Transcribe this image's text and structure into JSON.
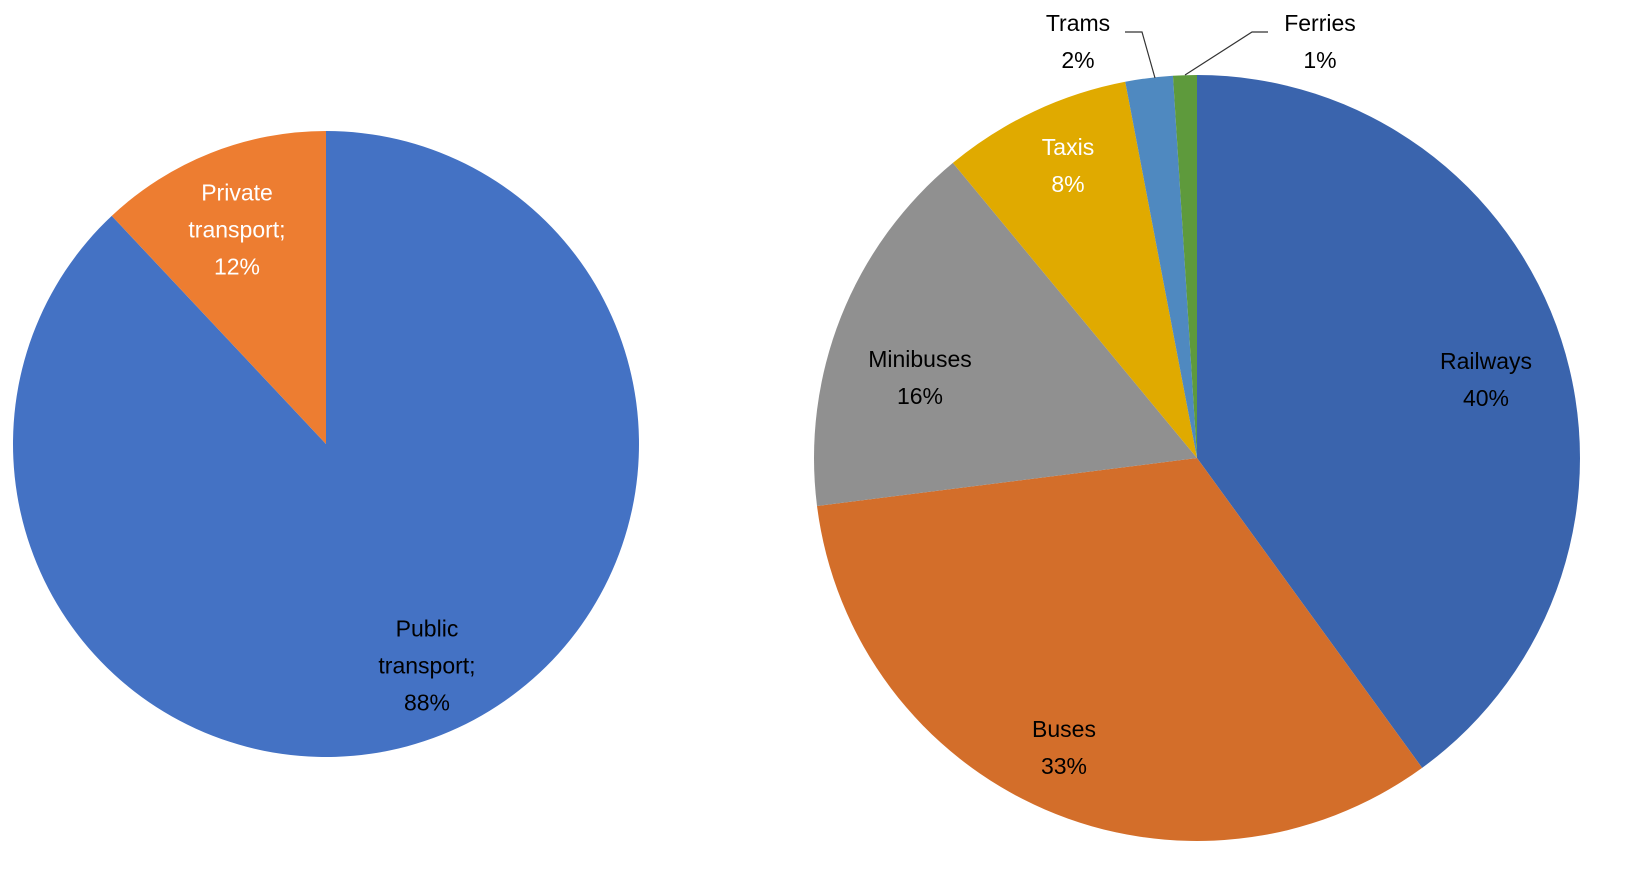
{
  "chart_data": [
    {
      "type": "pie",
      "categories": [
        "Public transport;",
        "Private transport;"
      ],
      "values": [
        88,
        12
      ],
      "value_labels": [
        "88%",
        "12%"
      ],
      "colors": [
        "#4472c4",
        "#ed7d31"
      ]
    },
    {
      "type": "pie",
      "categories": [
        "Railways",
        "Buses",
        "Minibuses",
        "Taxis",
        "Trams",
        "Ferries"
      ],
      "values": [
        40,
        33,
        16,
        8,
        2,
        1
      ],
      "value_labels": [
        "40%",
        "33%",
        "16%",
        "8%",
        "2%",
        "1%"
      ],
      "colors": [
        "#3a64ad",
        "#d36e2a",
        "#909090",
        "#e0aa00",
        "#4f89c0",
        "#5e9a3c"
      ]
    }
  ]
}
